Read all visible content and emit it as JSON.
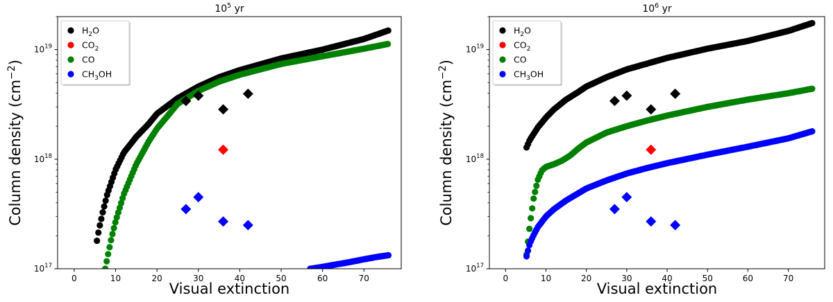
{
  "chart_data": [
    {
      "type": "scatter",
      "title": "10",
      "title_exp": "5",
      "title_suffix": " yr",
      "xlabel": "Visual extinction",
      "ylabel": "Column density (cm",
      "ylabel_exp": "−2",
      "ylabel_close": ")",
      "yscale": "log",
      "xlim": [
        -4,
        79
      ],
      "ylim": [
        1e+17,
        2e+19
      ],
      "xticks": [
        0,
        10,
        20,
        30,
        40,
        50,
        60,
        70
      ],
      "yticks": [
        {
          "value": 1e+17,
          "mant": "10",
          "exp": "17"
        },
        {
          "value": 1e+18,
          "mant": "10",
          "exp": "18"
        },
        {
          "value": 1e+19,
          "mant": "10",
          "exp": "19"
        }
      ],
      "legend_position": "upper left",
      "series": [
        {
          "name": "H2O",
          "sub": "2",
          "pre": "H",
          "post": "O",
          "color": "#000000",
          "curve": {
            "x": [
              5.5,
              6,
              7,
              8,
              10,
              12,
              15,
              18,
              20,
              25,
              30,
              35,
              40,
              50,
              60,
              70,
              76
            ],
            "y": [
              1.8e+17,
              2.3e+17,
              3.4e+17,
              4.8e+17,
              8e+17,
              1.15e+18,
              1.6e+18,
              2.1e+18,
              2.6e+18,
              3.6e+18,
              4.6e+18,
              5.6e+18,
              6.5e+18,
              8.3e+18,
              1e+19,
              1.25e+19,
              1.5e+19
            ]
          }
        },
        {
          "name": "CO2",
          "sub": "2",
          "pre": "CO",
          "post": "",
          "color": "#ff0000",
          "curve": null
        },
        {
          "name": "CO",
          "sub": "",
          "pre": "CO",
          "post": "",
          "color": "#008000",
          "curve": {
            "x": [
              7.5,
              8,
              9,
              10,
              12,
              15,
              18,
              20,
              25,
              30,
              35,
              40,
              50,
              60,
              70,
              76
            ],
            "y": [
              1e+17,
              1.25e+17,
              1.9e+17,
              2.7e+17,
              4.8e+17,
              9e+17,
              1.45e+18,
              1.9e+18,
              3.2e+18,
              4.2e+18,
              5.1e+18,
              5.9e+18,
              7.4e+18,
              8.7e+18,
              1.02e+19,
              1.13e+19
            ]
          }
        },
        {
          "name": "CH3OH",
          "sub": "3",
          "pre": "CH",
          "post": "OH",
          "color": "#0000ff",
          "curve": {
            "x": [
              57,
              60,
              63,
              66,
              70,
              73,
              76
            ],
            "y": [
              1e+17,
              1.04e+17,
              1.09e+17,
              1.14e+17,
              1.22e+17,
              1.28e+17,
              1.33e+17
            ]
          }
        }
      ],
      "observations": [
        {
          "series": "H2O",
          "x": [
            27,
            30,
            36,
            42
          ],
          "y": [
            3.4e+18,
            3.8e+18,
            2.85e+18,
            3.95e+18
          ]
        },
        {
          "series": "CO2",
          "x": [
            36
          ],
          "y": [
            1.22e+18
          ]
        },
        {
          "series": "CH3OH",
          "x": [
            27,
            30,
            36,
            42
          ],
          "y": [
            3.5e+17,
            4.5e+17,
            2.7e+17,
            2.5e+17
          ]
        }
      ]
    },
    {
      "type": "scatter",
      "title": "10",
      "title_exp": "6",
      "title_suffix": " yr",
      "xlabel": "Visual extinction",
      "ylabel": "Column density (cm",
      "ylabel_exp": "−2",
      "ylabel_close": ")",
      "yscale": "log",
      "xlim": [
        -4,
        79
      ],
      "ylim": [
        1e+17,
        2e+19
      ],
      "xticks": [
        0,
        10,
        20,
        30,
        40,
        50,
        60,
        70
      ],
      "yticks": [
        {
          "value": 1e+17,
          "mant": "10",
          "exp": "17"
        },
        {
          "value": 1e+18,
          "mant": "10",
          "exp": "18"
        },
        {
          "value": 1e+19,
          "mant": "10",
          "exp": "19"
        }
      ],
      "legend_position": "upper left",
      "series": [
        {
          "name": "H2O",
          "sub": "2",
          "pre": "H",
          "post": "O",
          "color": "#000000",
          "curve": {
            "x": [
              5.2,
              6,
              8,
              10,
              12,
              15,
              18,
              20,
              25,
              30,
              40,
              50,
              60,
              70,
              76
            ],
            "y": [
              1.28e+18,
              1.5e+18,
              1.95e+18,
              2.4e+18,
              2.85e+18,
              3.5e+18,
              4.1e+18,
              4.6e+18,
              5.6e+18,
              6.6e+18,
              8.4e+18,
              1.02e+19,
              1.2e+19,
              1.48e+19,
              1.75e+19
            ]
          }
        },
        {
          "name": "CO2",
          "sub": "2",
          "pre": "CO",
          "post": "",
          "color": "#ff0000",
          "curve": null
        },
        {
          "name": "CO",
          "sub": "",
          "pre": "CO",
          "post": "",
          "color": "#008000",
          "curve": {
            "x": [
              5.2,
              6,
              7,
              8,
              9,
              10,
              12,
              14,
              16,
              18,
              20,
              25,
              30,
              35,
              40,
              50,
              60,
              70,
              76
            ],
            "y": [
              1.35e+17,
              2.5e+17,
              4.5e+17,
              6.5e+17,
              7.9e+17,
              8.5e+17,
              9e+17,
              9.7e+17,
              1.08e+18,
              1.25e+18,
              1.42e+18,
              1.75e+18,
              2e+18,
              2.25e+18,
              2.5e+18,
              3e+18,
              3.5e+18,
              4e+18,
              4.4e+18
            ]
          }
        },
        {
          "name": "CH3OH",
          "sub": "3",
          "pre": "CH",
          "post": "OH",
          "color": "#0000ff",
          "curve": {
            "x": [
              5.2,
              6,
              7,
              8,
              10,
              12,
              15,
              20,
              25,
              30,
              35,
              40,
              50,
              60,
              70,
              76
            ],
            "y": [
              1.3e+17,
              1.7e+17,
              2.05e+17,
              2.4e+17,
              3e+17,
              3.5e+17,
              4.2e+17,
              5.4e+17,
              6.4e+17,
              7.4e+17,
              8.3e+17,
              9.2e+17,
              1.1e+18,
              1.3e+18,
              1.55e+18,
              1.8e+18
            ]
          }
        }
      ],
      "observations": [
        {
          "series": "H2O",
          "x": [
            27,
            30,
            36,
            42
          ],
          "y": [
            3.4e+18,
            3.8e+18,
            2.85e+18,
            3.95e+18
          ]
        },
        {
          "series": "CO2",
          "x": [
            36
          ],
          "y": [
            1.22e+18
          ]
        },
        {
          "series": "CH3OH",
          "x": [
            27,
            30,
            36,
            42
          ],
          "y": [
            3.5e+17,
            4.5e+17,
            2.7e+17,
            2.5e+17
          ]
        }
      ]
    }
  ]
}
